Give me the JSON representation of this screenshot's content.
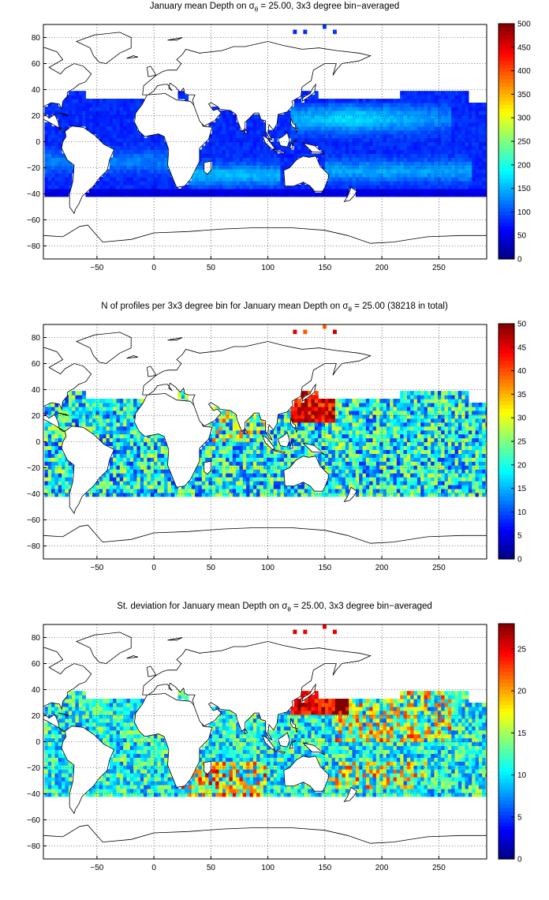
{
  "colormap": "jet",
  "chart_data": [
    {
      "type": "heatmap",
      "title_pre": "January mean Depth on σ",
      "title_sub": "θ",
      "title_post": " = 25.00, 3x3 degree bin−averaged",
      "x_ticks": [
        "−50",
        "0",
        "50",
        "100",
        "150",
        "200",
        "250"
      ],
      "x_tick_values": [
        -50,
        0,
        50,
        100,
        150,
        200,
        250
      ],
      "y_ticks": [
        "80",
        "60",
        "40",
        "20",
        "0",
        "−20",
        "−40",
        "−60",
        "−80"
      ],
      "y_tick_values": [
        80,
        60,
        40,
        20,
        0,
        -20,
        -40,
        -60,
        -80
      ],
      "xlim": [
        -97,
        292
      ],
      "ylim": [
        -90,
        90
      ],
      "grid": true,
      "grid_style": "dotted",
      "bin_size_deg": 3,
      "colorbar": {
        "vmin": 0,
        "vmax": 500,
        "ticks": [
          "500",
          "450",
          "400",
          "350",
          "300",
          "250",
          "200",
          "150",
          "100",
          "50",
          "0"
        ],
        "tick_values": [
          500,
          450,
          400,
          350,
          300,
          250,
          200,
          150,
          100,
          50,
          0
        ]
      },
      "field_description_values": {
        "coverage_lat_range": [
          -42,
          38
        ],
        "typical_value": 90,
        "max_value": 250
      }
    },
    {
      "type": "heatmap",
      "title_pre": "N of profiles per 3x3 degree bin for January mean Depth on σ",
      "title_sub": "θ",
      "title_post": " = 25.00 (38218 in total)",
      "x_ticks": [
        "−50",
        "0",
        "50",
        "100",
        "150",
        "200",
        "250"
      ],
      "x_tick_values": [
        -50,
        0,
        50,
        100,
        150,
        200,
        250
      ],
      "y_ticks": [
        "80",
        "60",
        "40",
        "20",
        "0",
        "−20",
        "−40",
        "−60",
        "−80"
      ],
      "y_tick_values": [
        80,
        60,
        40,
        20,
        0,
        -20,
        -40,
        -60,
        -80
      ],
      "xlim": [
        -97,
        292
      ],
      "ylim": [
        -90,
        90
      ],
      "grid": true,
      "grid_style": "dotted",
      "bin_size_deg": 3,
      "colorbar": {
        "vmin": 0,
        "vmax": 50,
        "ticks": [
          "50",
          "45",
          "40",
          "35",
          "30",
          "25",
          "20",
          "15",
          "10",
          "5",
          "0"
        ],
        "tick_values": [
          50,
          45,
          40,
          35,
          30,
          25,
          20,
          15,
          10,
          5,
          0
        ]
      },
      "field_description_values": {
        "coverage_lat_range": [
          -42,
          38
        ],
        "typical_value": 18,
        "max_value": 50
      }
    },
    {
      "type": "heatmap",
      "title_pre": "St. deviation for January mean Depth on σ",
      "title_sub": "θ",
      "title_post": " = 25.00, 3x3 degree bin−averaged",
      "x_ticks": [
        "−50",
        "0",
        "50",
        "100",
        "150",
        "200",
        "250"
      ],
      "x_tick_values": [
        -50,
        0,
        50,
        100,
        150,
        200,
        250
      ],
      "y_ticks": [
        "80",
        "60",
        "40",
        "20",
        "0",
        "−20",
        "−40",
        "−60",
        "−80"
      ],
      "y_tick_values": [
        80,
        60,
        40,
        20,
        0,
        -20,
        -40,
        -60,
        -80
      ],
      "xlim": [
        -97,
        292
      ],
      "ylim": [
        -90,
        90
      ],
      "grid": true,
      "grid_style": "dotted",
      "bin_size_deg": 3,
      "colorbar": {
        "vmin": 0,
        "vmax": 28,
        "ticks": [
          "25",
          "20",
          "15",
          "10",
          "5",
          "0"
        ],
        "tick_values": [
          25,
          20,
          15,
          10,
          5,
          0
        ]
      },
      "field_description_values": {
        "coverage_lat_range": [
          -42,
          38
        ],
        "typical_value": 12,
        "max_value": 28
      }
    }
  ]
}
